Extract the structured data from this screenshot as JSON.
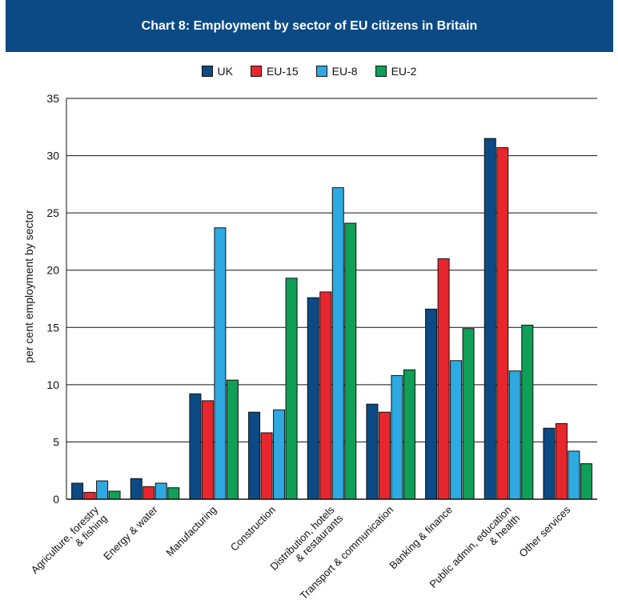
{
  "colors": {
    "banner": "#0b4a85",
    "UK": "#0b4a85",
    "EU-15": "#e8262e",
    "EU-8": "#2ea9e1",
    "EU-2": "#0f9f57"
  },
  "chart_data": {
    "type": "bar",
    "title": "Chart 8: Employment by sector of EU citizens in Britain",
    "ylabel": "per cent employment by sector",
    "xlabel": "",
    "ylim": [
      0,
      35
    ],
    "yticks": [
      0,
      5,
      10,
      15,
      20,
      25,
      30,
      35
    ],
    "grid": true,
    "legend_position": "top-center",
    "categories": [
      [
        "Agriculture, forestry",
        "& fishing"
      ],
      [
        "Energy & water"
      ],
      [
        "Manufacturing"
      ],
      [
        "Construction"
      ],
      [
        "Distribution, hotels",
        "& restaurants"
      ],
      [
        "Transport & communication"
      ],
      [
        "Banking & finance"
      ],
      [
        "Public admin, education",
        "& health"
      ],
      [
        "Other services"
      ]
    ],
    "series": [
      {
        "name": "UK",
        "color": "#0b4a85",
        "values": [
          1.4,
          1.8,
          9.2,
          7.6,
          17.6,
          8.3,
          16.6,
          31.5,
          6.2
        ]
      },
      {
        "name": "EU-15",
        "color": "#e8262e",
        "values": [
          0.6,
          1.1,
          8.6,
          5.8,
          18.1,
          7.6,
          21.0,
          30.7,
          6.6
        ]
      },
      {
        "name": "EU-8",
        "color": "#2ea9e1",
        "values": [
          1.6,
          1.4,
          23.7,
          7.8,
          27.2,
          10.8,
          12.1,
          11.2,
          4.2
        ]
      },
      {
        "name": "EU-2",
        "color": "#0f9f57",
        "values": [
          0.7,
          1.0,
          10.4,
          19.3,
          24.1,
          11.3,
          14.9,
          15.2,
          3.1
        ]
      }
    ]
  }
}
